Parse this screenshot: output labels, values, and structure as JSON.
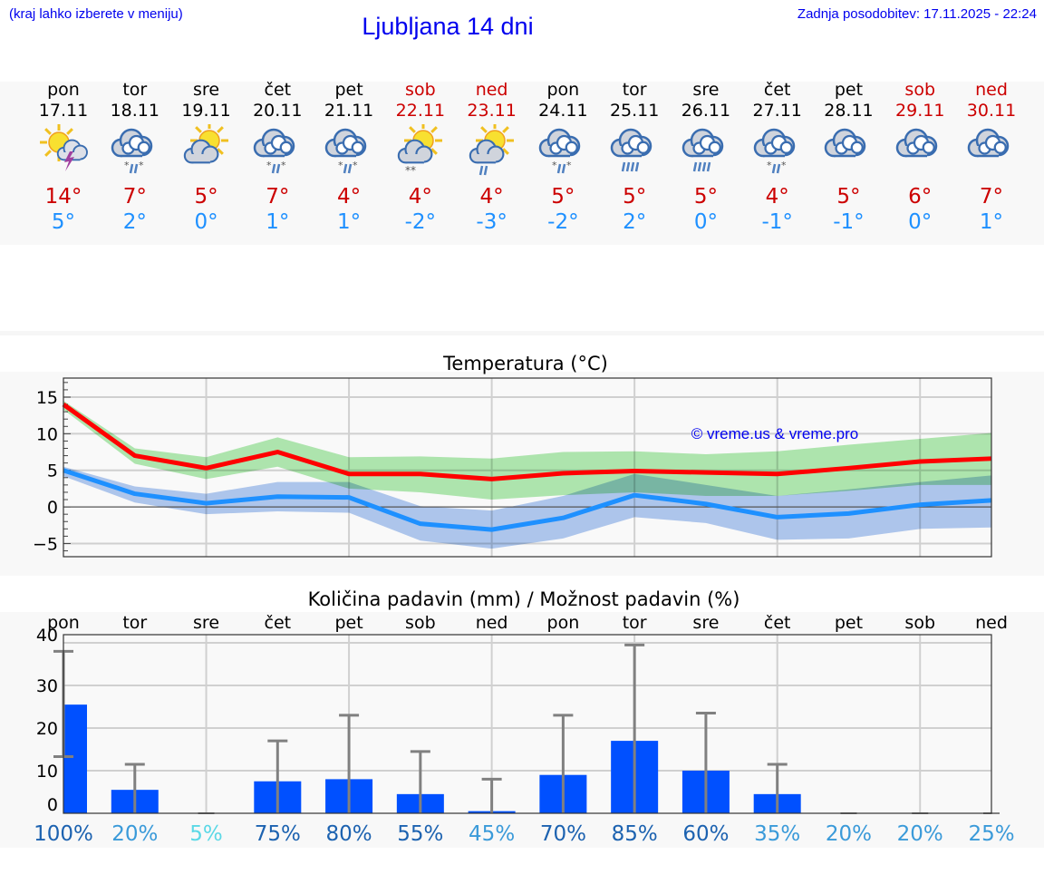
{
  "header": {
    "hint": "(kraj lahko izberete v meniju)",
    "title": "Ljubljana 14 dni",
    "updated": "Zadnja posodobitev: 17.11.2025 - 22:24"
  },
  "colors": {
    "link": "#0000ee",
    "max": "#cc0000",
    "min": "#1e90ff",
    "weekend": "#cc0000",
    "max_line": "#ff0000",
    "max_band": "#a8e8a8",
    "min_line": "#1e90ff",
    "min_band": "#a8c4f0",
    "bar": "#0050ff",
    "error_bar": "#808080",
    "prob_high": "#1c62b0",
    "prob_mid": "#3a9ad9",
    "prob_low": "#5bd8e6"
  },
  "days": [
    {
      "name": "pon",
      "date": "17.11",
      "icon": "sun-cloud-thunder-icon",
      "max": "14°",
      "min": "5°",
      "weekend": false
    },
    {
      "name": "tor",
      "date": "18.11",
      "icon": "cloud-sleet-icon",
      "max": "7°",
      "min": "2°",
      "weekend": false
    },
    {
      "name": "sre",
      "date": "19.11",
      "icon": "sun-cloud-icon",
      "max": "5°",
      "min": "0°",
      "weekend": false
    },
    {
      "name": "čet",
      "date": "20.11",
      "icon": "cloud-sleet-icon",
      "max": "7°",
      "min": "1°",
      "weekend": false
    },
    {
      "name": "pet",
      "date": "21.11",
      "icon": "cloud-sleet-icon",
      "max": "4°",
      "min": "1°",
      "weekend": false
    },
    {
      "name": "sob",
      "date": "22.11",
      "icon": "sun-cloud-snow-icon",
      "max": "4°",
      "min": "-2°",
      "weekend": true
    },
    {
      "name": "ned",
      "date": "23.11",
      "icon": "sun-cloud-rain-icon",
      "max": "4°",
      "min": "-3°",
      "weekend": true
    },
    {
      "name": "pon",
      "date": "24.11",
      "icon": "cloud-sleet-icon",
      "max": "5°",
      "min": "-2°",
      "weekend": false
    },
    {
      "name": "tor",
      "date": "25.11",
      "icon": "cloud-rain-icon",
      "max": "5°",
      "min": "2°",
      "weekend": false
    },
    {
      "name": "sre",
      "date": "26.11",
      "icon": "cloud-rain-icon",
      "max": "5°",
      "min": "0°",
      "weekend": false
    },
    {
      "name": "čet",
      "date": "27.11",
      "icon": "cloud-sleet-icon",
      "max": "4°",
      "min": "-1°",
      "weekend": false
    },
    {
      "name": "pet",
      "date": "28.11",
      "icon": "cloud-icon",
      "max": "5°",
      "min": "-1°",
      "weekend": false
    },
    {
      "name": "sob",
      "date": "29.11",
      "icon": "cloud-icon",
      "max": "6°",
      "min": "0°",
      "weekend": true
    },
    {
      "name": "ned",
      "date": "30.11",
      "icon": "cloud-icon",
      "max": "7°",
      "min": "1°",
      "weekend": true
    }
  ],
  "chart_data": [
    {
      "type": "line",
      "title": "Temperatura (°C)",
      "watermark": "© vreme.us & vreme.pro",
      "x": [
        "17.11",
        "18.11",
        "19.11",
        "20.11",
        "21.11",
        "22.11",
        "23.11",
        "24.11",
        "25.11",
        "26.11",
        "27.11",
        "28.11",
        "29.11",
        "30.11"
      ],
      "ylim": [
        -6.8,
        17.6
      ],
      "yticks": [
        15,
        10,
        5,
        0,
        -5
      ],
      "ytick_labels": [
        "15",
        "10",
        "5",
        "0",
        "−5"
      ],
      "grid": true,
      "series": [
        {
          "role": "max",
          "color": "#ff0000",
          "values": [
            14,
            7,
            5.3,
            7.5,
            4.5,
            4.5,
            3.8,
            4.6,
            4.9,
            4.7,
            4.5,
            5.3,
            6.2,
            6.6
          ],
          "band_upper": [
            14.5,
            8,
            6.8,
            9.5,
            6.8,
            6.9,
            6.6,
            7.5,
            7.6,
            7.2,
            7.6,
            8.5,
            9.3,
            10.1
          ],
          "band_lower": [
            13.3,
            5.9,
            3.8,
            5.5,
            2.5,
            2.0,
            1.0,
            1.6,
            2.0,
            1.5,
            1.5,
            2.2,
            3.0,
            3.0
          ],
          "band_color": "#a8e8a8"
        },
        {
          "role": "min",
          "color": "#1e90ff",
          "values": [
            5,
            1.8,
            0.5,
            1.4,
            1.3,
            -2.3,
            -3.1,
            -1.5,
            1.6,
            0.4,
            -1.4,
            -0.9,
            0.3,
            0.9
          ],
          "band_upper": [
            5.5,
            2.8,
            1.8,
            3.4,
            3.4,
            0.1,
            -0.5,
            1.5,
            4.5,
            3.0,
            1.5,
            2.4,
            3.4,
            4.3
          ],
          "band_lower": [
            4.2,
            0.6,
            -1.0,
            -0.6,
            -0.8,
            -4.6,
            -5.7,
            -4.3,
            -1.4,
            -2.2,
            -4.5,
            -4.3,
            -3.0,
            -2.8
          ],
          "band_color": "#a8c4f0"
        }
      ]
    },
    {
      "type": "bar",
      "title": "Količina padavin (mm) / Možnost padavin (%)",
      "categories": [
        "pon",
        "tor",
        "sre",
        "čet",
        "pet",
        "sob",
        "ned",
        "pon",
        "tor",
        "sre",
        "čet",
        "pet",
        "sob",
        "ned"
      ],
      "values": [
        25.5,
        5.5,
        0,
        7.5,
        8,
        4.5,
        0.5,
        9,
        17,
        10,
        4.5,
        0,
        0,
        0
      ],
      "error_upper": [
        38,
        11.5,
        0,
        17,
        23,
        14.5,
        8,
        23,
        39.5,
        23.5,
        11.5,
        0,
        0,
        0
      ],
      "error_lower": [
        13.3,
        0,
        0,
        0,
        0,
        0,
        0,
        0,
        0,
        0,
        0,
        0,
        0,
        0
      ],
      "probability": [
        "100%",
        "20%",
        "5%",
        "75%",
        "80%",
        "55%",
        "45%",
        "70%",
        "85%",
        "60%",
        "35%",
        "20%",
        "20%",
        "25%"
      ],
      "probability_level": [
        "high",
        "mid",
        "low",
        "high",
        "high",
        "high",
        "mid",
        "high",
        "high",
        "high",
        "mid",
        "mid",
        "mid",
        "mid"
      ],
      "ylim": [
        0,
        42
      ],
      "yticks": [
        40,
        30,
        20,
        10,
        0
      ],
      "ytick_labels": [
        "40",
        "30",
        "20",
        "10",
        "0"
      ],
      "grid": true
    }
  ]
}
